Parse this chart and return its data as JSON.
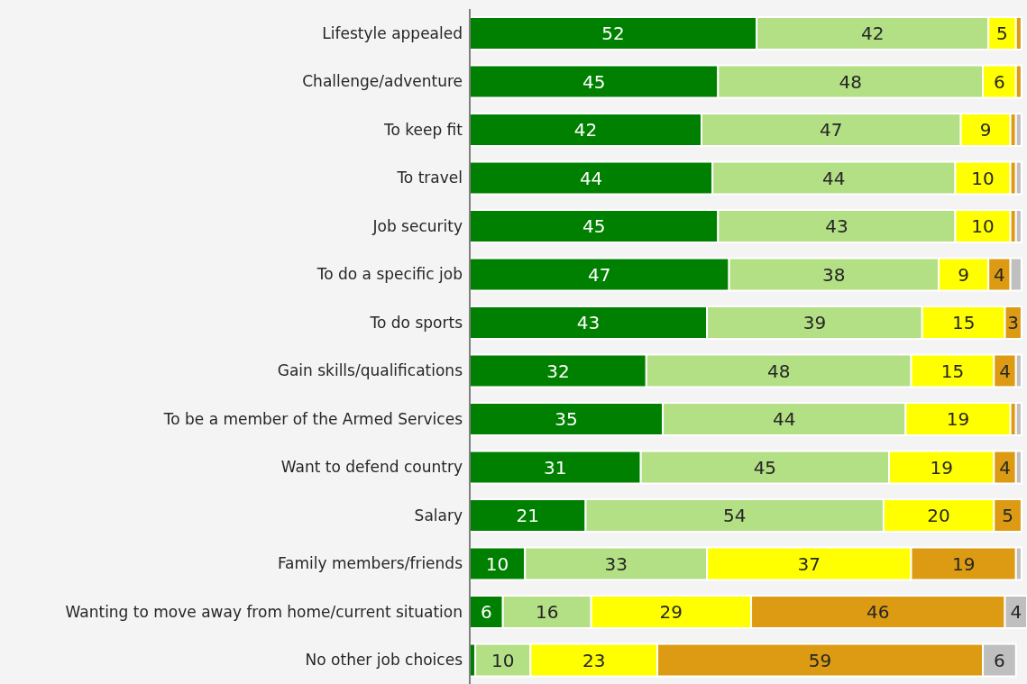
{
  "chart_data": {
    "type": "bar",
    "orientation": "horizontal",
    "stacked": true,
    "tick_labels": "y",
    "xlim": [
      0,
      101
    ],
    "categories": [
      "Lifestyle appealed",
      "Challenge/adventure",
      "To keep fit",
      "To travel",
      "Job security",
      "To do a specific job",
      "To do sports",
      "Gain skills/qualifications",
      "To be a member of the Armed Services",
      "Want to defend country",
      "Salary",
      "Family members/friends",
      "Wanting to move away from home/current situation",
      "No other job choices"
    ],
    "series": [
      {
        "color": "#008000",
        "values": [
          52,
          45,
          42,
          44,
          45,
          47,
          43,
          32,
          35,
          31,
          21,
          10,
          6,
          1
        ],
        "value_labels": [
          "52",
          "45",
          "42",
          "44",
          "45",
          "47",
          "43",
          "32",
          "35",
          "31",
          "21",
          "10",
          "6",
          null
        ]
      },
      {
        "color": "#b3df85",
        "values": [
          42,
          48,
          47,
          44,
          43,
          38,
          39,
          48,
          44,
          45,
          54,
          33,
          16,
          10
        ],
        "value_labels": [
          "42",
          "48",
          "47",
          "44",
          "43",
          "38",
          "39",
          "48",
          "44",
          "45",
          "54",
          "33",
          "16",
          "10"
        ]
      },
      {
        "color": "#ffff00",
        "values": [
          5,
          6,
          9,
          10,
          10,
          9,
          15,
          15,
          19,
          19,
          20,
          37,
          29,
          23
        ],
        "value_labels": [
          "5",
          "6",
          "9",
          "10",
          "10",
          "9",
          "15",
          "15",
          "19",
          "19",
          "20",
          "37",
          "29",
          "23"
        ]
      },
      {
        "color": "#dc9b12",
        "values": [
          1,
          1,
          1,
          1,
          1,
          4,
          3,
          4,
          1,
          4,
          5,
          19,
          46,
          59
        ],
        "value_labels": [
          null,
          null,
          null,
          null,
          null,
          "4",
          "3",
          "4",
          null,
          "4",
          "5",
          "19",
          "46",
          "59"
        ]
      },
      {
        "color": "#bfbfbf",
        "values": [
          0,
          0,
          1,
          1,
          1,
          2,
          0,
          1,
          1,
          1,
          0,
          1,
          4,
          6
        ],
        "value_labels": [
          null,
          null,
          null,
          null,
          null,
          null,
          null,
          null,
          null,
          null,
          null,
          null,
          "4",
          "6"
        ]
      }
    ]
  }
}
